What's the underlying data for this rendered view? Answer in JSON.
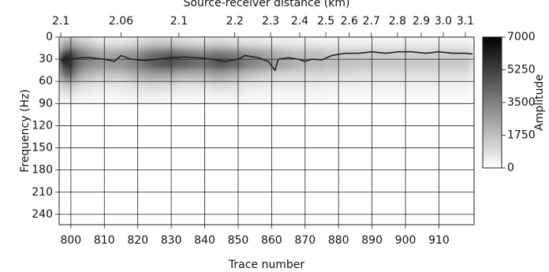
{
  "chart_data": {
    "type": "heatmap",
    "x2_label": "Source-receiver distance (km)",
    "x_label": "Trace number",
    "y_label": "Frequency (Hz)",
    "colorbar_label": "Amplitude",
    "xlim": [
      796.5,
      920.5
    ],
    "ylim": [
      0,
      254
    ],
    "xticks": [
      800,
      810,
      820,
      830,
      840,
      850,
      860,
      870,
      880,
      890,
      900,
      910
    ],
    "yticks": [
      0,
      30,
      60,
      90,
      120,
      150,
      180,
      210,
      240
    ],
    "x2ticks": [
      {
        "value": 797,
        "label": "2.1"
      },
      {
        "value": 815,
        "label": "2.06"
      },
      {
        "value": 832.3,
        "label": "2.1"
      },
      {
        "value": 849,
        "label": "2.2"
      },
      {
        "value": 859.7,
        "label": "2.3"
      },
      {
        "value": 868.4,
        "label": "2.4"
      },
      {
        "value": 876.2,
        "label": "2.5"
      },
      {
        "value": 883.2,
        "label": "2.6"
      },
      {
        "value": 889.8,
        "label": "2.7"
      },
      {
        "value": 897.6,
        "label": "2.8"
      },
      {
        "value": 904.7,
        "label": "2.9"
      },
      {
        "value": 911.3,
        "label": "3.0"
      },
      {
        "value": 917.9,
        "label": "3.1"
      }
    ],
    "zlim": [
      0,
      7000
    ],
    "zticks": [
      0,
      1750,
      3500,
      5250,
      7000
    ],
    "grid": true,
    "x_bins": [
      796.5,
      801.5,
      806.5,
      811.5,
      816.5,
      821.5,
      826.5,
      831.5,
      836.5,
      841.5,
      846.5,
      851.5,
      856.5,
      861.5,
      866.5,
      871.5,
      876.5,
      881.5,
      886.5,
      891.5,
      896.5,
      901.5,
      906.5,
      911.5,
      920.5
    ],
    "y_bins": [
      0,
      15,
      30,
      45,
      60,
      75,
      90
    ],
    "z": [
      [
        2500,
        1500,
        800,
        800,
        1000,
        1500,
        1500,
        1200,
        1000,
        1200,
        1000,
        800,
        700,
        600,
        500,
        500,
        400,
        400,
        400,
        400,
        400,
        400,
        400,
        400
      ],
      [
        7000,
        3500,
        2500,
        2500,
        3000,
        4000,
        4500,
        4000,
        3500,
        4000,
        3500,
        3000,
        2500,
        2000,
        1800,
        1800,
        1500,
        1500,
        1500,
        1400,
        1400,
        1400,
        1400,
        1400
      ],
      [
        7000,
        3500,
        3000,
        3000,
        3500,
        4500,
        5000,
        4500,
        4000,
        5000,
        4500,
        3500,
        3000,
        2500,
        2000,
        2000,
        1800,
        1700,
        1600,
        1500,
        1500,
        1500,
        1500,
        1500
      ],
      [
        4500,
        2000,
        1500,
        1500,
        2000,
        2500,
        2500,
        2000,
        2000,
        2500,
        2000,
        1500,
        1200,
        1000,
        1000,
        1000,
        900,
        900,
        800,
        800,
        800,
        800,
        800,
        800
      ],
      [
        1500,
        800,
        600,
        600,
        800,
        1000,
        900,
        700,
        700,
        900,
        800,
        600,
        500,
        500,
        500,
        500,
        400,
        400,
        400,
        400,
        400,
        400,
        400,
        400
      ],
      [
        500,
        300,
        200,
        200,
        300,
        400,
        300,
        200,
        200,
        300,
        300,
        200,
        200,
        200,
        200,
        200,
        150,
        150,
        150,
        150,
        150,
        150,
        150,
        150
      ]
    ],
    "line": {
      "color": "#222222",
      "x": [
        797,
        800,
        803,
        806,
        810,
        813,
        815,
        818,
        822,
        826,
        830,
        834,
        838,
        842,
        846,
        850,
        852,
        856,
        859,
        861,
        862,
        865,
        868,
        870,
        872,
        875,
        878,
        882,
        886,
        890,
        894,
        898,
        902,
        906,
        910,
        914,
        918,
        920
      ],
      "values": [
        32,
        30,
        28,
        28,
        30,
        33,
        25,
        30,
        32,
        30,
        28,
        27,
        28,
        30,
        33,
        30,
        25,
        28,
        33,
        45,
        30,
        28,
        30,
        33,
        30,
        31,
        25,
        22,
        22,
        20,
        22,
        20,
        20,
        22,
        20,
        22,
        22,
        23
      ]
    }
  }
}
